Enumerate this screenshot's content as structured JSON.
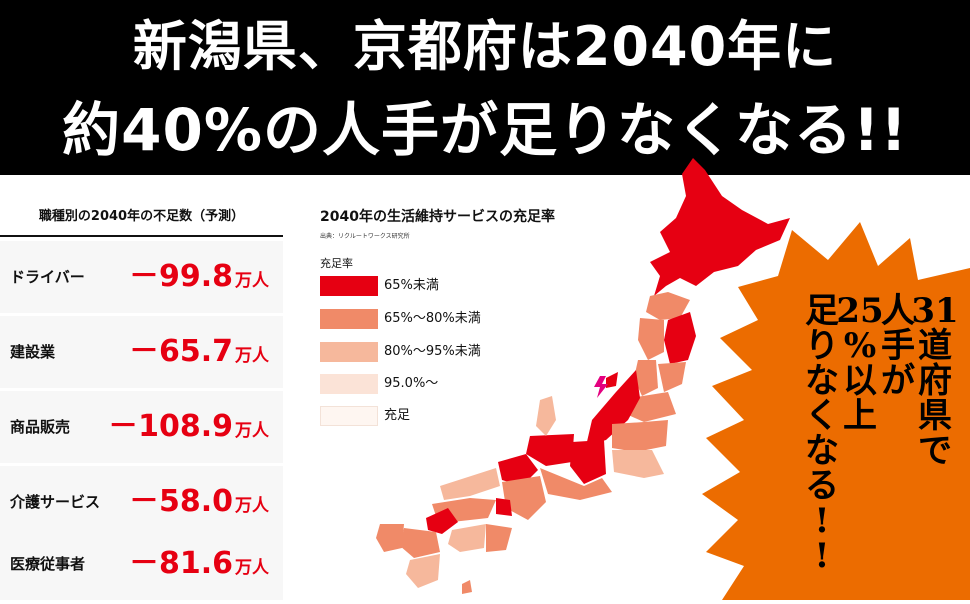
{
  "headline": {
    "line1": "新潟県、京都府は2040年に",
    "line2": "約40%の人手が足りなくなる!!"
  },
  "chart_data": [
    {
      "type": "table",
      "title": "職種別の2040年の不足数（予測）",
      "rows": [
        {
          "label": "ドライバー",
          "value": -99.8,
          "display": "－99.8",
          "unit": "万人"
        },
        {
          "label": "建設業",
          "value": -65.7,
          "display": "－65.7",
          "unit": "万人"
        },
        {
          "label": "商品販売",
          "value": -108.9,
          "display": "－108.9",
          "unit": "万人"
        },
        {
          "label": "介護サービス",
          "value": -58.0,
          "display": "－58.0",
          "unit": "万人"
        },
        {
          "label": "医療従事者",
          "value": -81.6,
          "display": "－81.6",
          "unit": "万人"
        }
      ]
    },
    {
      "type": "choropleth",
      "title": "2040年の生活維持サービスの充足率",
      "source": "出典：リクルートワークス研究所",
      "legend_title": "充足率",
      "legend": [
        {
          "label": "65%未満",
          "color": "#e60012"
        },
        {
          "label": "65%～80%未満",
          "color": "#f08a68"
        },
        {
          "label": "80%～95%未満",
          "color": "#f6b89c"
        },
        {
          "label": "95.0%～",
          "color": "#fbe3d7"
        },
        {
          "label": "充足",
          "color": "#fef6f1"
        }
      ]
    }
  ],
  "callout": {
    "lines": [
      "31道府県で",
      "人手が",
      "25%以上",
      "足りなくなる!!"
    ],
    "color": "#ec6c00"
  }
}
